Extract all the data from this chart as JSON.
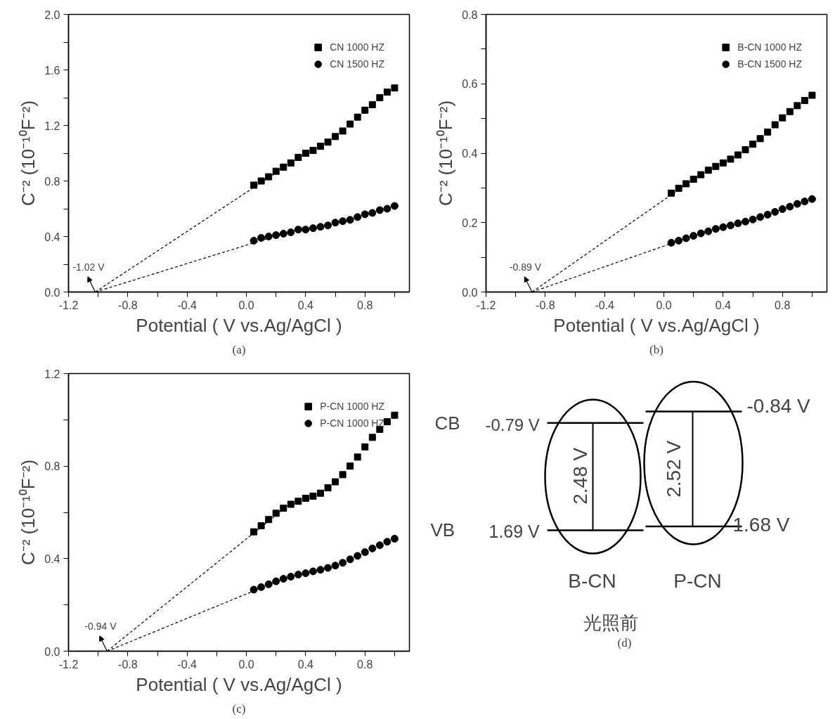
{
  "chart_data": [
    {
      "type": "scatter",
      "xlabel": "Potential ( V vs.Ag/AgCl )",
      "ylabel": "C⁻² (10⁻¹⁰F⁻²)",
      "legend": "top right",
      "grid": false,
      "xlim": [
        -1.2,
        1.1
      ],
      "ylim": [
        0,
        2.0
      ],
      "xticks": [
        -1.2,
        {
          "value": -1.0,
          "label": null
        },
        -0.8,
        {
          "value": -0.6,
          "label": null
        },
        -0.4,
        {
          "value": -0.2,
          "label": null
        },
        {
          "value": 0,
          "label": "0.0"
        },
        {
          "value": 0.2,
          "label": null
        },
        0.4,
        {
          "value": 0.6,
          "label": null
        },
        0.8,
        {
          "value": 1.0,
          "label": null
        }
      ],
      "yticks": [
        {
          "value": 0,
          "label": "0.0"
        },
        {
          "value": 0.2,
          "label": null
        },
        0.4,
        {
          "value": 0.6,
          "label": null
        },
        0.8,
        {
          "value": 1.0,
          "label": null
        },
        1.2,
        {
          "value": 1.4,
          "label": null
        },
        1.6,
        {
          "value": 1.8,
          "label": null
        },
        {
          "value": 2.0,
          "label": "2.0"
        }
      ],
      "x": [
        0.05,
        0.1,
        0.15,
        0.2,
        0.25,
        0.3,
        0.35,
        0.4,
        0.45,
        0.5,
        0.55,
        0.6,
        0.65,
        0.7,
        0.75,
        0.8,
        0.85,
        0.9,
        0.95,
        1.0
      ],
      "series": [
        {
          "name": "CN 1000 HZ",
          "type": "scatter",
          "marker": "square",
          "color": "#000000",
          "values": [
            0.77,
            0.8,
            0.83,
            0.87,
            0.9,
            0.93,
            0.97,
            1.0,
            1.02,
            1.05,
            1.08,
            1.12,
            1.16,
            1.21,
            1.26,
            1.31,
            1.35,
            1.4,
            1.44,
            1.47
          ]
        },
        {
          "name": "CN 1500 HZ",
          "type": "scatter",
          "marker": "circle",
          "color": "#000000",
          "values": [
            0.37,
            0.39,
            0.4,
            0.41,
            0.42,
            0.43,
            0.45,
            0.45,
            0.46,
            0.47,
            0.48,
            0.5,
            0.51,
            0.52,
            0.54,
            0.56,
            0.57,
            0.59,
            0.6,
            0.62
          ]
        },
        {
          "type": "line",
          "line_style": "dashed",
          "color": "#000000",
          "x": [
            -1.02,
            0.4
          ],
          "values": [
            0,
            1.0
          ]
        },
        {
          "type": "line",
          "line_style": "dashed",
          "color": "#000000",
          "x": [
            -1.02,
            0.4
          ],
          "values": [
            0,
            0.47
          ]
        }
      ],
      "annotations": [
        {
          "text": "-1.02 V",
          "x": -1.02,
          "y": 0
        },
        "(a)"
      ]
    },
    {
      "type": "scatter",
      "xlabel": "Potential ( V vs.Ag/AgCl )",
      "ylabel": "C⁻² (10⁻¹⁰F⁻²)",
      "legend": "top right",
      "grid": false,
      "xlim": [
        -1.2,
        1.1
      ],
      "ylim": [
        0,
        0.8
      ],
      "xticks": [
        -1.2,
        {
          "value": -1.0,
          "label": null
        },
        -0.8,
        {
          "value": -0.6,
          "label": null
        },
        -0.4,
        {
          "value": -0.2,
          "label": null
        },
        {
          "value": 0,
          "label": "0.0"
        },
        {
          "value": 0.2,
          "label": null
        },
        0.4,
        {
          "value": 0.6,
          "label": null
        },
        0.8,
        {
          "value": 1.0,
          "label": null
        }
      ],
      "yticks": [
        {
          "value": 0,
          "label": "0.0"
        },
        {
          "value": 0.1,
          "label": null
        },
        0.2,
        {
          "value": 0.3,
          "label": null
        },
        0.4,
        {
          "value": 0.5,
          "label": null
        },
        0.6,
        {
          "value": 0.7,
          "label": null
        },
        0.8
      ],
      "x": [
        0.05,
        0.1,
        0.15,
        0.2,
        0.25,
        0.3,
        0.35,
        0.4,
        0.45,
        0.5,
        0.55,
        0.6,
        0.65,
        0.7,
        0.75,
        0.8,
        0.85,
        0.9,
        0.95,
        1.0
      ],
      "series": [
        {
          "name": "B-CN 1000 HZ",
          "type": "scatter",
          "marker": "square",
          "color": "#000000",
          "values": [
            0.285,
            0.299,
            0.312,
            0.325,
            0.338,
            0.351,
            0.362,
            0.372,
            0.383,
            0.395,
            0.41,
            0.426,
            0.442,
            0.461,
            0.482,
            0.502,
            0.52,
            0.537,
            0.552,
            0.567
          ]
        },
        {
          "name": "B-CN 1500 HZ",
          "type": "scatter",
          "marker": "circle",
          "color": "#000000",
          "values": [
            0.142,
            0.148,
            0.155,
            0.162,
            0.169,
            0.175,
            0.182,
            0.187,
            0.192,
            0.198,
            0.203,
            0.209,
            0.216,
            0.223,
            0.231,
            0.239,
            0.246,
            0.254,
            0.261,
            0.268
          ]
        },
        {
          "type": "line",
          "line_style": "dashed",
          "color": "#000000",
          "x": [
            -0.89,
            0.3
          ],
          "values": [
            0,
            0.355
          ]
        },
        {
          "type": "line",
          "line_style": "dashed",
          "color": "#000000",
          "x": [
            -0.89,
            0.3
          ],
          "values": [
            0,
            0.177
          ]
        }
      ],
      "annotations": [
        {
          "text": "-0.89 V",
          "x": -0.89,
          "y": 0
        },
        "(b)"
      ]
    },
    {
      "type": "scatter",
      "xlabel": "Potential ( V vs.Ag/AgCl )",
      "ylabel": "C⁻² (10⁻¹⁰F⁻²)",
      "legend": "top right",
      "grid": false,
      "xlim": [
        -1.2,
        1.1
      ],
      "ylim": [
        0,
        1.2
      ],
      "xticks": [
        -1.2,
        {
          "value": -1.0,
          "label": null
        },
        -0.8,
        {
          "value": -0.6,
          "label": null
        },
        -0.4,
        {
          "value": -0.2,
          "label": null
        },
        {
          "value": 0,
          "label": "0.0"
        },
        {
          "value": 0.2,
          "label": null
        },
        0.4,
        {
          "value": 0.6,
          "label": null
        },
        0.8,
        {
          "value": 1.0,
          "label": null
        }
      ],
      "yticks": [
        {
          "value": 0,
          "label": "0.0"
        },
        {
          "value": 0.2,
          "label": null
        },
        0.4,
        {
          "value": 0.6,
          "label": null
        },
        0.8,
        {
          "value": 1.0,
          "label": null
        },
        1.2
      ],
      "x": [
        0.05,
        0.1,
        0.15,
        0.2,
        0.25,
        0.3,
        0.35,
        0.4,
        0.45,
        0.5,
        0.55,
        0.6,
        0.65,
        0.7,
        0.75,
        0.8,
        0.85,
        0.9,
        0.95,
        1.0
      ],
      "series": [
        {
          "name": "P-CN 1000 HZ",
          "type": "scatter",
          "marker": "square",
          "color": "#000000",
          "values": [
            0.516,
            0.542,
            0.569,
            0.596,
            0.618,
            0.635,
            0.648,
            0.661,
            0.67,
            0.683,
            0.706,
            0.732,
            0.763,
            0.8,
            0.839,
            0.883,
            0.924,
            0.959,
            0.992,
            1.02
          ]
        },
        {
          "name": "P-CN 1000 HZ",
          "type": "scatter",
          "marker": "circle",
          "color": "#000000",
          "values": [
            0.266,
            0.277,
            0.289,
            0.302,
            0.313,
            0.322,
            0.331,
            0.337,
            0.345,
            0.352,
            0.36,
            0.37,
            0.382,
            0.397,
            0.412,
            0.428,
            0.444,
            0.458,
            0.473,
            0.486
          ]
        },
        {
          "type": "line",
          "line_style": "dashed",
          "color": "#000000",
          "x": [
            -0.94,
            0.3
          ],
          "values": [
            0,
            0.64
          ]
        },
        {
          "type": "line",
          "line_style": "dashed",
          "color": "#000000",
          "x": [
            -0.94,
            0.3
          ],
          "values": [
            0,
            0.326
          ]
        }
      ],
      "annotations": [
        {
          "text": "-0.94 V",
          "x": -0.94,
          "y": 0
        },
        "(c)"
      ]
    },
    {
      "type": "other",
      "annotations": [
        "CB",
        "-0.79 V",
        "VB",
        "1.69 V",
        "2.48 V",
        "-0.84 V",
        "2.52 V",
        "1.68 V",
        "B-CN",
        "P-CN",
        "光照前",
        "(d)"
      ]
    }
  ]
}
